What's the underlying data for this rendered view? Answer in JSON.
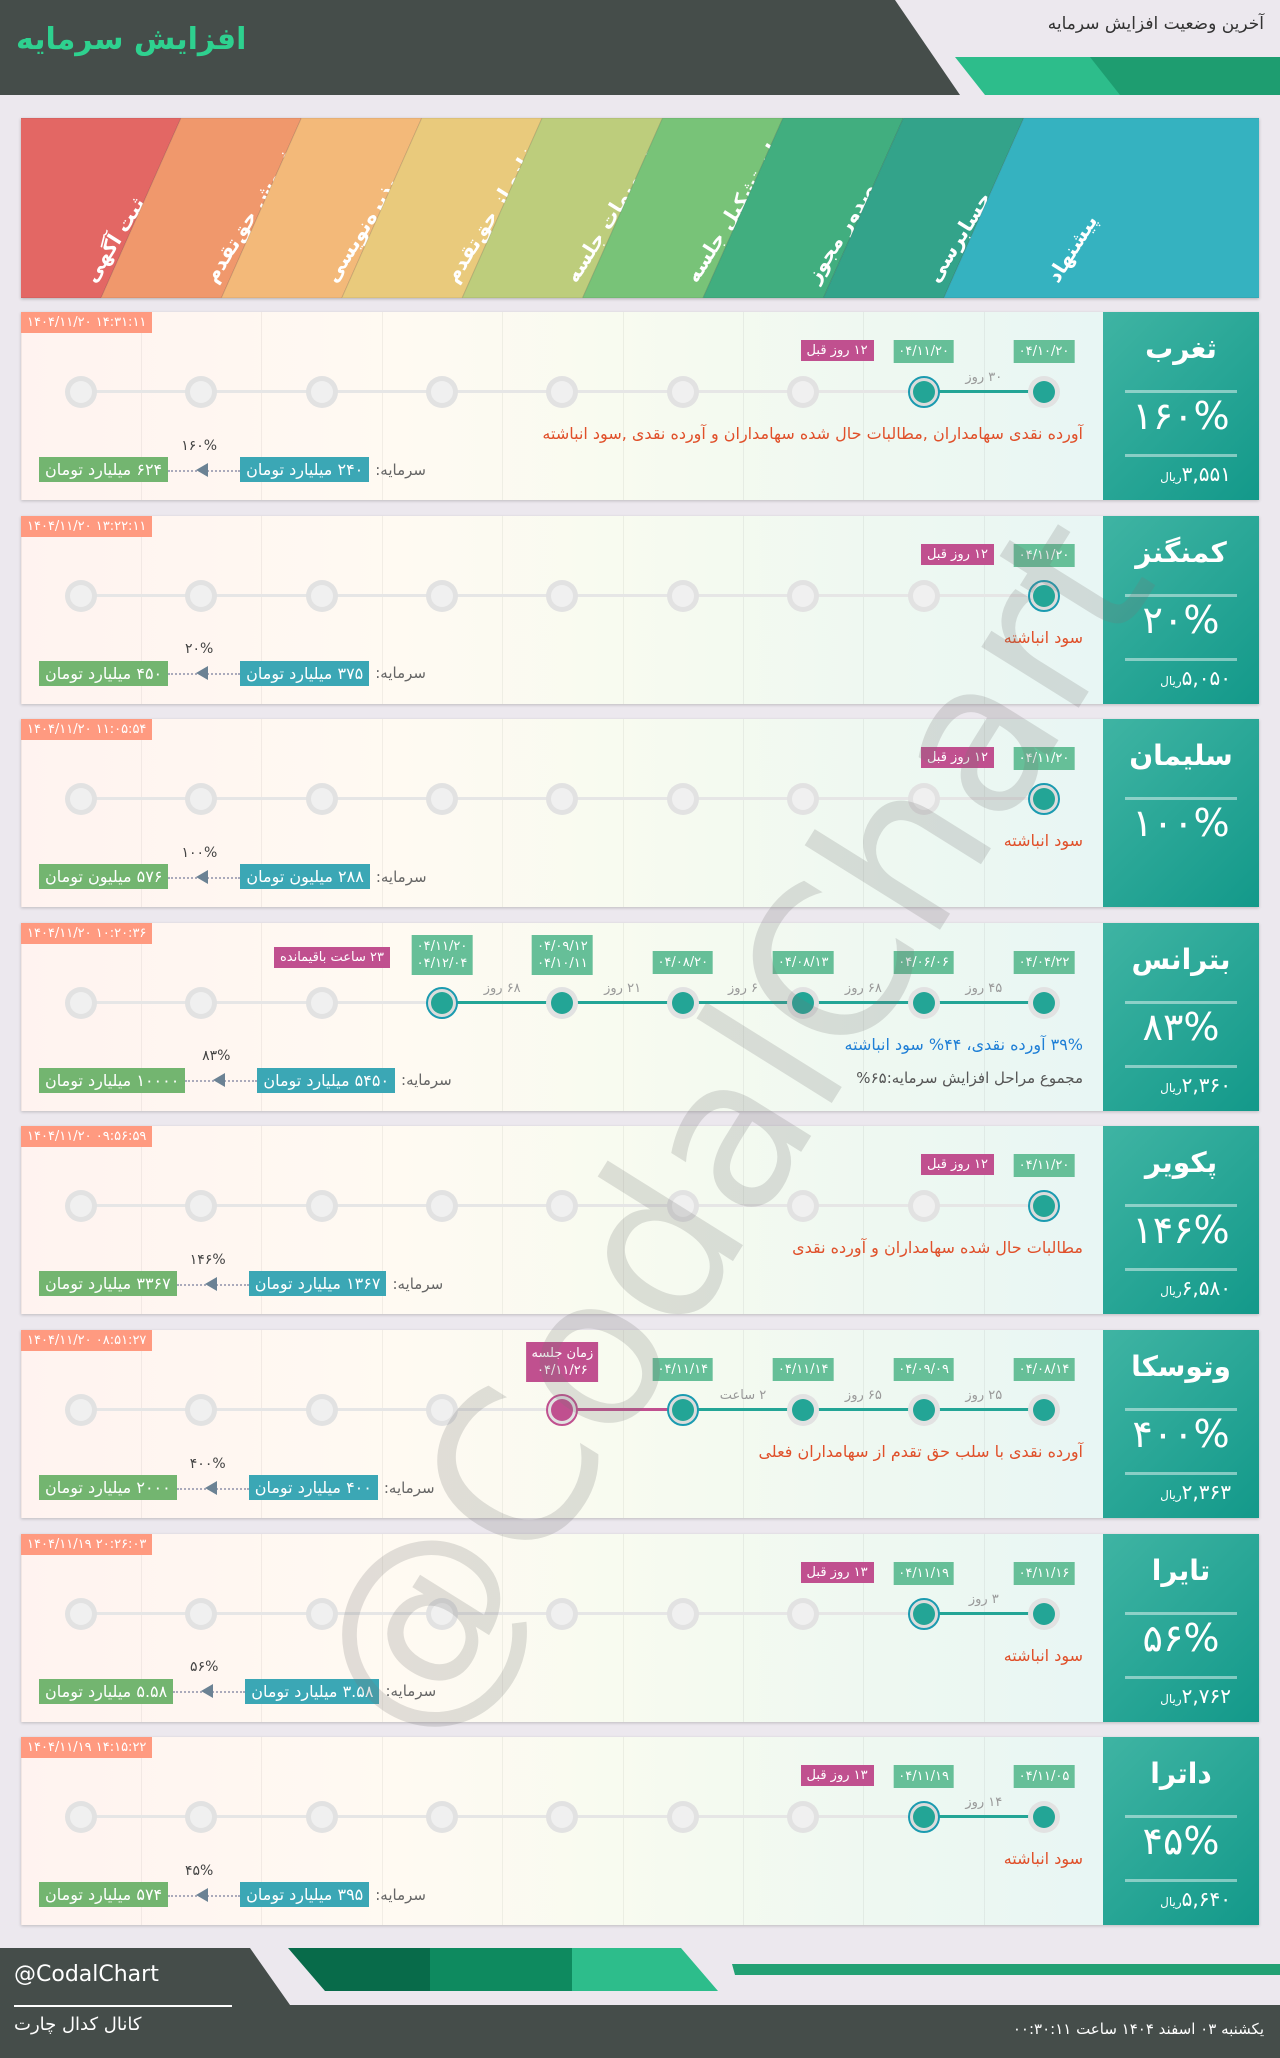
{
  "header": {
    "title": "افزایش سرمایه",
    "subtitle": "آخرین وضعیت افزایش سرمایه"
  },
  "stages": [
    "پیشنهاد",
    "حسابرسی",
    "صدور مجوز",
    "زمان تشکیل جلسه",
    "تصمیمات جلسه",
    "استفاده از حق‌تقدم",
    "پذیره‌نویسی",
    "فروش حق‌تقدم",
    "ثبت آگهی"
  ],
  "stage_colors": [
    "#1aa8b8",
    "#17977a",
    "#27a36e",
    "#66bb66",
    "#b4c66a",
    "#e6c36a",
    "#f2b067",
    "#ee8a58",
    "#e0524f"
  ],
  "capital_label": "سرمایه:",
  "price_unit": "ریال",
  "rows": [
    {
      "name": "ثغرب",
      "percent": "۱۶۰%",
      "price": "۳,۵۵۱",
      "timestamp": "۱۴۰۴/۱۱/۲۰ ۱۴:۳۱:۱۱",
      "done": 2,
      "current": 1,
      "dates": [
        "۰۴/۱۰/۲۰",
        "۰۴/۱۱/۲۰"
      ],
      "gaps": [
        "۳۰ روز"
      ],
      "ago": "۱۲ روز قبل",
      "desc": "آورده نقدی سهامداران ,مطالبات حال شده سهامداران و آورده نقدی ,سود انباشته",
      "desc_style": "red",
      "cap_from": "۲۴۰ میلیارد تومان",
      "cap_to": "۶۲۴ میلیارد تومان",
      "cap_pct": "۱۶۰%"
    },
    {
      "name": "کمنگنز",
      "percent": "۲۰%",
      "price": "۵,۰۵۰",
      "timestamp": "۱۴۰۴/۱۱/۲۰ ۱۳:۲۲:۱۱",
      "done": 1,
      "current": 0,
      "dates": [
        "۰۴/۱۱/۲۰"
      ],
      "gaps": [],
      "ago": "۱۲ روز قبل",
      "desc": "سود انباشته",
      "desc_style": "red",
      "cap_from": "۳۷۵ میلیارد تومان",
      "cap_to": "۴۵۰ میلیارد تومان",
      "cap_pct": "۲۰%"
    },
    {
      "name": "سلیمان",
      "percent": "۱۰۰%",
      "price": null,
      "timestamp": "۱۴۰۴/۱۱/۲۰ ۱۱:۰۵:۵۴",
      "done": 1,
      "current": 0,
      "dates": [
        "۰۴/۱۱/۲۰"
      ],
      "gaps": [],
      "ago": "۱۲ روز قبل",
      "desc": "سود انباشته",
      "desc_style": "red",
      "cap_from": "۲۸۸ میلیون تومان",
      "cap_to": "۵۷۶ میلیون تومان",
      "cap_pct": "۱۰۰%"
    },
    {
      "name": "بترانس",
      "percent": "۸۳%",
      "price": "۲,۳۶۰",
      "timestamp": "۱۴۰۴/۱۱/۲۰ ۱۰:۲۰:۳۶",
      "done": 6,
      "current": 5,
      "dates": [
        "۰۴/۰۴/۲۲",
        "۰۴/۰۶/۰۶",
        "۰۴/۰۸/۱۳",
        "۰۴/۰۸/۲۰",
        "۰۴/۰۹/۱۲\n۰۴/۱۰/۱۱",
        "۰۴/۱۱/۲۰\n۰۴/۱۲/۰۴"
      ],
      "gaps": [
        "۴۵ روز",
        "۶۸ روز",
        "۶ روز",
        "۲۱ روز",
        "۶۸ روز"
      ],
      "ago": "۲۳ ساعت باقیمانده",
      "desc": "۳۹% آورده نقدی، ۴۴% سود انباشته",
      "desc_style": "blue",
      "desc2": "مجموع مراحل افزایش سرمایه:۶۵%",
      "cap_from": "۵۴۵۰ میلیارد تومان",
      "cap_to": "۱۰۰۰۰ میلیارد تومان",
      "cap_pct": "۸۳%"
    },
    {
      "name": "پکویر",
      "percent": "۱۴۶%",
      "price": "۶,۵۸۰",
      "timestamp": "۱۴۰۴/۱۱/۲۰ ۰۹:۵۶:۵۹",
      "done": 1,
      "current": 0,
      "dates": [
        "۰۴/۱۱/۲۰"
      ],
      "gaps": [],
      "ago": "۱۲ روز قبل",
      "desc": "مطالبات حال شده سهامداران و آورده نقدی",
      "desc_style": "red",
      "cap_from": "۱۳۶۷ میلیارد تومان",
      "cap_to": "۳۳۶۷ میلیارد تومان",
      "cap_pct": "۱۴۶%"
    },
    {
      "name": "وتوسکا",
      "percent": "۴۰۰%",
      "price": "۲,۳۶۳",
      "timestamp": "۱۴۰۴/۱۱/۲۰ ۰۸:۵۱:۲۷",
      "done": 4,
      "current": 3,
      "dates": [
        "۰۴/۰۸/۱۴",
        "۰۴/۰۹/۰۹",
        "۰۴/۱۱/۱۴",
        "۰۴/۱۱/۱۴"
      ],
      "gaps": [
        "۲۵ روز",
        "۶۵ روز",
        "۲ ساعت"
      ],
      "ago": null,
      "meeting": {
        "stage": 4,
        "label": "زمان جلسه\n۰۴/۱۱/۲۶"
      },
      "desc": "آورده نقدی با سلب حق تقدم از سهامداران فعلی",
      "desc_style": "red",
      "cap_from": "۴۰۰ میلیارد تومان",
      "cap_to": "۲۰۰۰ میلیارد تومان",
      "cap_pct": "۴۰۰%"
    },
    {
      "name": "تایرا",
      "percent": "۵۶%",
      "price": "۲,۷۶۲",
      "timestamp": "۱۴۰۴/۱۱/۱۹ ۲۰:۲۶:۰۳",
      "done": 2,
      "current": 1,
      "dates": [
        "۰۴/۱۱/۱۶",
        "۰۴/۱۱/۱۹"
      ],
      "gaps": [
        "۳ روز"
      ],
      "ago": "۱۳ روز قبل",
      "desc": "سود انباشته",
      "desc_style": "red",
      "cap_from": "۳.۵۸ میلیارد تومان",
      "cap_to": "۵.۵۸ میلیارد تومان",
      "cap_pct": "۵۶%"
    },
    {
      "name": "داترا",
      "percent": "۴۵%",
      "price": "۵,۶۴۰",
      "timestamp": "۱۴۰۴/۱۱/۱۹ ۱۴:۱۵:۲۲",
      "done": 2,
      "current": 1,
      "dates": [
        "۰۴/۱۱/۰۵",
        "۰۴/۱۱/۱۹"
      ],
      "gaps": [
        "۱۴ روز"
      ],
      "ago": "۱۳ روز قبل",
      "desc": "سود انباشته",
      "desc_style": "red",
      "cap_from": "۳۹۵ میلیارد تومان",
      "cap_to": "۵۷۴ میلیارد تومان",
      "cap_pct": "۴۵%"
    }
  ],
  "watermark": "@CodalChart",
  "footer": {
    "handle": "@CodalChart",
    "channel": "کانال کدال چارت",
    "date": "یکشنبه ۰۳ اسفند ۱۴۰۴ ساعت ۰۰:۳۰:۱۱"
  }
}
